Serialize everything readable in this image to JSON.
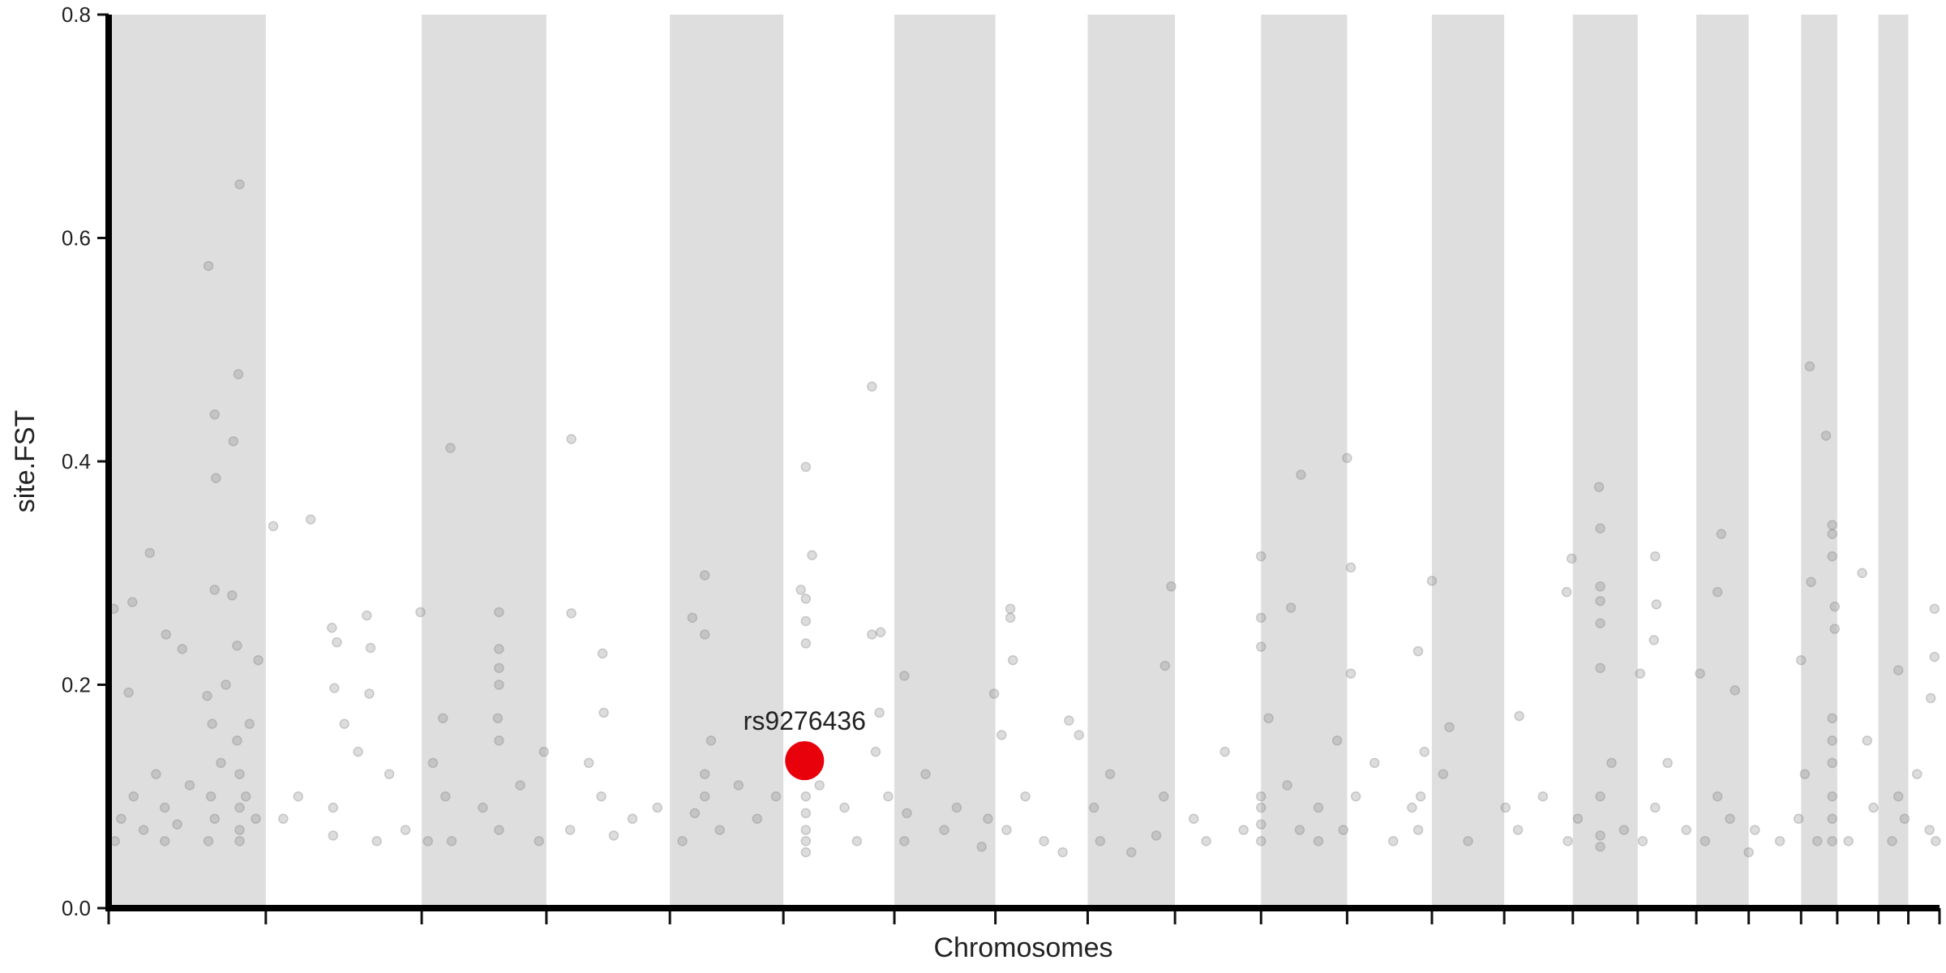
{
  "chart_data": {
    "type": "scatter",
    "xlabel": "Chromosomes",
    "ylabel": "site.FST",
    "xlim": [
      0,
      1468
    ],
    "ylim": [
      0,
      0.8
    ],
    "xticks": [
      0,
      126,
      251,
      351,
      450,
      541,
      630,
      711,
      785,
      855,
      924,
      993,
      1061,
      1119,
      1174,
      1226,
      1273,
      1315,
      1357,
      1386,
      1419,
      1443,
      1468
    ],
    "yticks": [
      {
        "value": 0,
        "label": "0.0"
      },
      0.2,
      0.4,
      0.6,
      0.8
    ],
    "band_color": "#dedede",
    "grid": false,
    "series": [
      {
        "color": "#808080",
        "x": [
          80,
          105,
          85,
          86,
          100,
          104,
          85,
          99,
          33,
          19,
          4,
          46,
          59,
          16,
          120,
          103,
          79,
          83,
          94,
          103,
          105,
          113,
          132,
          162,
          179,
          183,
          207,
          210,
          181,
          209,
          189,
          250,
          274,
          313,
          313,
          313,
          313,
          312,
          268,
          371,
          371,
          396,
          397,
          468,
          478,
          478,
          483,
          559,
          564,
          555,
          559,
          559,
          559,
          612,
          612,
          619,
          618,
          638,
          710,
          723,
          723,
          725,
          716,
          770,
          778,
          852,
          847,
          924,
          924,
          924,
          948,
          956,
          993,
          996,
          996,
          1050,
          1061,
          1075,
          1131,
          1169,
          1173,
          1195,
          1196,
          1196,
          1196,
          1196,
          1196,
          1240,
          1241,
          1228,
          1239,
          1293,
          1276,
          1304,
          1290,
          1364,
          1377,
          1382,
          1382,
          1382,
          1384,
          1384,
          1365,
          1357,
          1406,
          1435,
          1464,
          1464,
          1461,
          5,
          10,
          20,
          28,
          38,
          45,
          45,
          55,
          65,
          80,
          82,
          85,
          90,
          105,
          105,
          105,
          110,
          118,
          140,
          152,
          180,
          180,
          200,
          215,
          225,
          238,
          256,
          260,
          270,
          275,
          300,
          313,
          313,
          330,
          345,
          349,
          370,
          385,
          395,
          405,
          420,
          440,
          460,
          470,
          478,
          478,
          490,
          505,
          520,
          535,
          559,
          559,
          559,
          559,
          559,
          570,
          590,
          600,
          615,
          625,
          638,
          640,
          655,
          670,
          680,
          700,
          705,
          720,
          735,
          750,
          765,
          790,
          795,
          803,
          820,
          840,
          846,
          870,
          880,
          895,
          910,
          924,
          924,
          924,
          924,
          930,
          945,
          955,
          970,
          970,
          985,
          990,
          1000,
          1015,
          1030,
          1045,
          1050,
          1052,
          1055,
          1070,
          1090,
          1120,
          1130,
          1150,
          1170,
          1178,
          1196,
          1196,
          1196,
          1205,
          1215,
          1230,
          1240,
          1250,
          1265,
          1280,
          1290,
          1300,
          1315,
          1320,
          1340,
          1355,
          1360,
          1370,
          1382,
          1382,
          1382,
          1382,
          1382,
          1382,
          1395,
          1410,
          1415,
          1430,
          1435,
          1440,
          1450,
          1460,
          1465
        ],
        "values": [
          0.575,
          0.648,
          0.442,
          0.385,
          0.418,
          0.478,
          0.285,
          0.28,
          0.318,
          0.274,
          0.268,
          0.245,
          0.232,
          0.193,
          0.222,
          0.235,
          0.19,
          0.165,
          0.2,
          0.15,
          0.12,
          0.165,
          0.342,
          0.348,
          0.251,
          0.238,
          0.262,
          0.233,
          0.197,
          0.192,
          0.165,
          0.265,
          0.412,
          0.265,
          0.232,
          0.215,
          0.2,
          0.17,
          0.17,
          0.42,
          0.264,
          0.228,
          0.175,
          0.26,
          0.298,
          0.245,
          0.15,
          0.395,
          0.316,
          0.285,
          0.277,
          0.257,
          0.237,
          0.467,
          0.245,
          0.247,
          0.175,
          0.208,
          0.192,
          0.268,
          0.26,
          0.222,
          0.155,
          0.168,
          0.155,
          0.288,
          0.217,
          0.315,
          0.26,
          0.234,
          0.269,
          0.388,
          0.403,
          0.305,
          0.21,
          0.23,
          0.293,
          0.162,
          0.172,
          0.283,
          0.313,
          0.377,
          0.34,
          0.288,
          0.275,
          0.255,
          0.215,
          0.315,
          0.272,
          0.21,
          0.24,
          0.335,
          0.21,
          0.195,
          0.283,
          0.485,
          0.423,
          0.343,
          0.335,
          0.315,
          0.27,
          0.25,
          0.292,
          0.222,
          0.3,
          0.213,
          0.268,
          0.225,
          0.188,
          0.06,
          0.08,
          0.1,
          0.07,
          0.12,
          0.09,
          0.06,
          0.075,
          0.11,
          0.06,
          0.1,
          0.08,
          0.13,
          0.07,
          0.06,
          0.09,
          0.1,
          0.08,
          0.08,
          0.1,
          0.065,
          0.09,
          0.14,
          0.06,
          0.12,
          0.07,
          0.06,
          0.13,
          0.1,
          0.06,
          0.09,
          0.07,
          0.15,
          0.11,
          0.06,
          0.14,
          0.07,
          0.13,
          0.1,
          0.065,
          0.08,
          0.09,
          0.06,
          0.085,
          0.1,
          0.12,
          0.07,
          0.11,
          0.08,
          0.1,
          0.05,
          0.07,
          0.085,
          0.1,
          0.06,
          0.11,
          0.09,
          0.06,
          0.14,
          0.1,
          0.06,
          0.085,
          0.12,
          0.07,
          0.09,
          0.055,
          0.08,
          0.07,
          0.1,
          0.06,
          0.05,
          0.09,
          0.06,
          0.12,
          0.05,
          0.065,
          0.1,
          0.08,
          0.06,
          0.14,
          0.07,
          0.06,
          0.075,
          0.09,
          0.1,
          0.17,
          0.11,
          0.07,
          0.06,
          0.09,
          0.15,
          0.07,
          0.1,
          0.13,
          0.06,
          0.09,
          0.07,
          0.1,
          0.14,
          0.12,
          0.06,
          0.09,
          0.07,
          0.1,
          0.06,
          0.08,
          0.065,
          0.055,
          0.1,
          0.13,
          0.07,
          0.06,
          0.09,
          0.13,
          0.07,
          0.06,
          0.1,
          0.08,
          0.05,
          0.07,
          0.06,
          0.08,
          0.12,
          0.06,
          0.06,
          0.08,
          0.1,
          0.13,
          0.15,
          0.17,
          0.06,
          0.15,
          0.09,
          0.06,
          0.1,
          0.08,
          0.12,
          0.07,
          0.06
        ]
      },
      {
        "color": "#e8000b",
        "label": "rs9276436",
        "x": [
          558
        ],
        "values": [
          0.132
        ]
      }
    ]
  }
}
